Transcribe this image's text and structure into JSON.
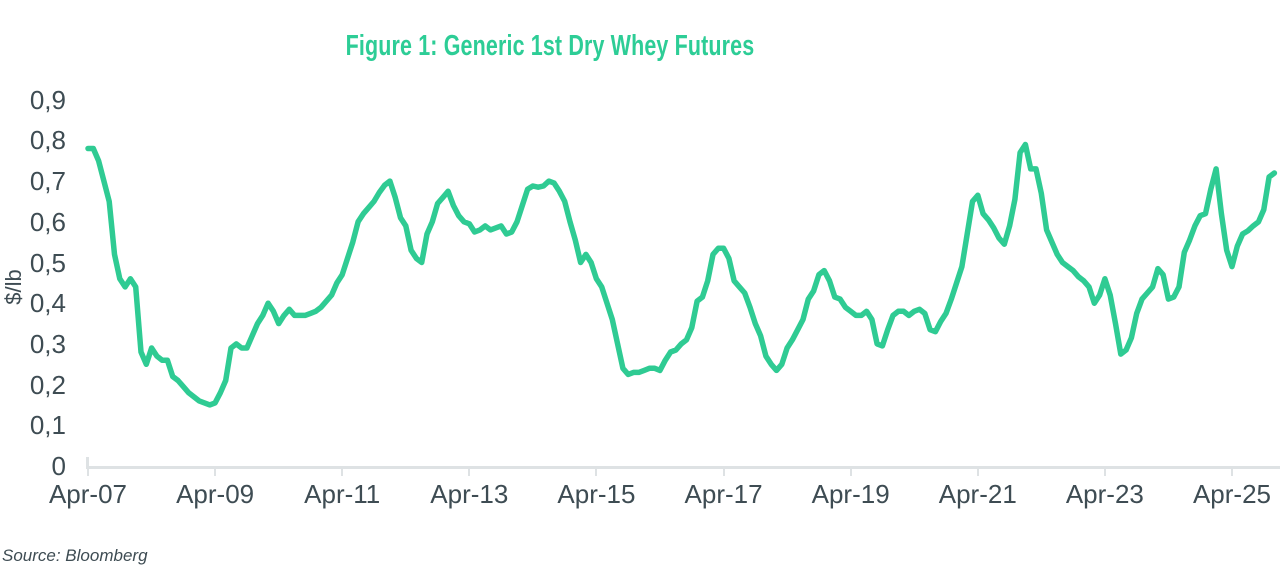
{
  "title": {
    "text": "Figure 1: Generic 1st Dry Whey Futures",
    "color": "#2dcd96"
  },
  "source": {
    "text": "Source: Bloomberg"
  },
  "y_axis": {
    "title": "$/lb",
    "tick_labels": [
      "0,9",
      "0,8",
      "0,7",
      "0,6",
      "0,5",
      "0,4",
      "0,3",
      "0,2",
      "0,1",
      "0"
    ],
    "tick_values": [
      0.9,
      0.8,
      0.7,
      0.6,
      0.5,
      0.4,
      0.3,
      0.2,
      0.1,
      0
    ]
  },
  "x_axis": {
    "tick_labels": [
      "Apr-07",
      "Apr-09",
      "Apr-11",
      "Apr-13",
      "Apr-15",
      "Apr-17",
      "Apr-19",
      "Apr-21",
      "Apr-23",
      "Apr-25"
    ]
  },
  "chart_data": {
    "type": "line",
    "title": "Figure 1: Generic 1st Dry Whey Futures",
    "xlabel": "",
    "ylabel": "$/lb",
    "ylim": [
      0,
      0.9
    ],
    "grid": false,
    "legend": "none",
    "line_color": "#2fcb93",
    "frequency": "monthly",
    "x_start": "Apr-2007",
    "x_end": "Dec-2025",
    "x_tick_labels": [
      "Apr-07",
      "Apr-09",
      "Apr-11",
      "Apr-13",
      "Apr-15",
      "Apr-17",
      "Apr-19",
      "Apr-21",
      "Apr-23",
      "Apr-25"
    ],
    "x_tick_month_indices": [
      0,
      24,
      48,
      72,
      96,
      120,
      144,
      168,
      192,
      216
    ],
    "series": [
      {
        "name": "Generic 1st Dry Whey Futures ($/lb)",
        "values": [
          0.78,
          0.78,
          0.75,
          0.7,
          0.65,
          0.52,
          0.46,
          0.44,
          0.46,
          0.44,
          0.28,
          0.25,
          0.29,
          0.27,
          0.26,
          0.26,
          0.22,
          0.21,
          0.195,
          0.18,
          0.17,
          0.16,
          0.155,
          0.15,
          0.155,
          0.18,
          0.21,
          0.29,
          0.3,
          0.29,
          0.29,
          0.32,
          0.35,
          0.37,
          0.4,
          0.38,
          0.35,
          0.37,
          0.385,
          0.37,
          0.37,
          0.37,
          0.375,
          0.38,
          0.39,
          0.405,
          0.42,
          0.45,
          0.47,
          0.51,
          0.55,
          0.6,
          0.62,
          0.635,
          0.65,
          0.672,
          0.69,
          0.7,
          0.66,
          0.61,
          0.59,
          0.53,
          0.51,
          0.5,
          0.57,
          0.6,
          0.645,
          0.66,
          0.675,
          0.64,
          0.615,
          0.6,
          0.595,
          0.575,
          0.58,
          0.59,
          0.58,
          0.585,
          0.59,
          0.57,
          0.575,
          0.6,
          0.64,
          0.68,
          0.688,
          0.685,
          0.688,
          0.7,
          0.695,
          0.675,
          0.65,
          0.6,
          0.555,
          0.5,
          0.52,
          0.5,
          0.46,
          0.44,
          0.4,
          0.36,
          0.3,
          0.24,
          0.225,
          0.23,
          0.23,
          0.235,
          0.24,
          0.24,
          0.235,
          0.26,
          0.28,
          0.285,
          0.3,
          0.31,
          0.34,
          0.405,
          0.415,
          0.455,
          0.52,
          0.535,
          0.535,
          0.51,
          0.455,
          0.44,
          0.425,
          0.39,
          0.35,
          0.32,
          0.27,
          0.25,
          0.235,
          0.25,
          0.29,
          0.31,
          0.335,
          0.36,
          0.41,
          0.43,
          0.47,
          0.48,
          0.455,
          0.415,
          0.41,
          0.39,
          0.38,
          0.37,
          0.37,
          0.38,
          0.36,
          0.3,
          0.295,
          0.335,
          0.37,
          0.38,
          0.38,
          0.37,
          0.38,
          0.385,
          0.375,
          0.335,
          0.33,
          0.355,
          0.375,
          0.41,
          0.45,
          0.49,
          0.57,
          0.65,
          0.665,
          0.62,
          0.605,
          0.585,
          0.56,
          0.545,
          0.59,
          0.655,
          0.77,
          0.79,
          0.73,
          0.73,
          0.67,
          0.58,
          0.55,
          0.52,
          0.5,
          0.49,
          0.48,
          0.465,
          0.455,
          0.44,
          0.4,
          0.42,
          0.46,
          0.42,
          0.35,
          0.275,
          0.285,
          0.315,
          0.375,
          0.41,
          0.425,
          0.44,
          0.485,
          0.47,
          0.41,
          0.415,
          0.44,
          0.525,
          0.555,
          0.59,
          0.615,
          0.62,
          0.68,
          0.73,
          0.62,
          0.53,
          0.49,
          0.54,
          0.57,
          0.578,
          0.59,
          0.6,
          0.63,
          0.71,
          0.72
        ]
      }
    ]
  }
}
